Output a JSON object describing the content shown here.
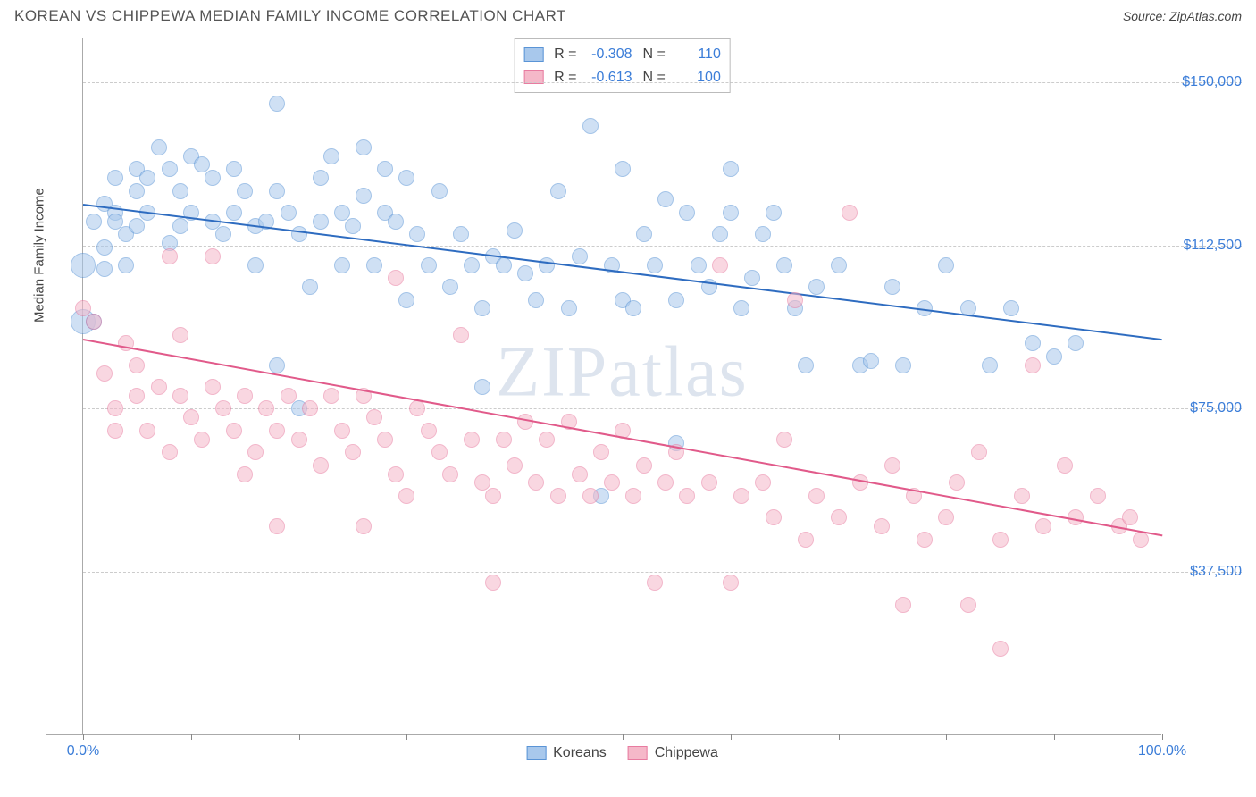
{
  "header": {
    "title": "KOREAN VS CHIPPEWA MEDIAN FAMILY INCOME CORRELATION CHART",
    "source": "Source: ZipAtlas.com"
  },
  "chart": {
    "type": "scatter",
    "ylabel": "Median Family Income",
    "xlim": [
      0,
      100
    ],
    "ylim": [
      0,
      160000
    ],
    "xticks": [
      0,
      10,
      20,
      30,
      40,
      50,
      60,
      70,
      80,
      90,
      100
    ],
    "xtick_labels": {
      "0": "0.0%",
      "100": "100.0%"
    },
    "yticks": [
      37500,
      75000,
      112500,
      150000
    ],
    "ytick_labels": [
      "$37,500",
      "$75,000",
      "$112,500",
      "$150,000"
    ],
    "grid_color": "#cccccc",
    "axis_color": "#aaaaaa",
    "background_color": "#ffffff",
    "ytick_label_color": "#3b7dd8",
    "watermark": "ZIPatlas",
    "series": [
      {
        "name": "Koreans",
        "fill": "#a8c8ec",
        "stroke": "#5a94d6",
        "opacity": 0.55,
        "marker_radius": 9,
        "trend": {
          "color": "#2e6cc0",
          "x1": 0,
          "y1": 122000,
          "x2": 100,
          "y2": 91000
        },
        "R": "-0.308",
        "N": "110",
        "points": [
          [
            0,
            108000,
            14
          ],
          [
            0,
            95000,
            14
          ],
          [
            1,
            118000,
            9
          ],
          [
            1,
            95000,
            9
          ],
          [
            2,
            122000,
            9
          ],
          [
            2,
            112000,
            9
          ],
          [
            2,
            107000,
            9
          ],
          [
            3,
            128000,
            9
          ],
          [
            3,
            120000,
            9
          ],
          [
            3,
            118000,
            9
          ],
          [
            4,
            108000,
            9
          ],
          [
            4,
            115000,
            9
          ],
          [
            5,
            125000,
            9
          ],
          [
            5,
            130000,
            9
          ],
          [
            5,
            117000,
            9
          ],
          [
            6,
            128000,
            9
          ],
          [
            6,
            120000,
            9
          ],
          [
            7,
            135000,
            9
          ],
          [
            8,
            130000,
            9
          ],
          [
            8,
            113000,
            9
          ],
          [
            9,
            125000,
            9
          ],
          [
            9,
            117000,
            9
          ],
          [
            10,
            133000,
            9
          ],
          [
            10,
            120000,
            9
          ],
          [
            11,
            131000,
            9
          ],
          [
            12,
            128000,
            9
          ],
          [
            12,
            118000,
            9
          ],
          [
            13,
            115000,
            9
          ],
          [
            14,
            130000,
            9
          ],
          [
            14,
            120000,
            9
          ],
          [
            15,
            125000,
            9
          ],
          [
            16,
            117000,
            9
          ],
          [
            16,
            108000,
            9
          ],
          [
            17,
            118000,
            9
          ],
          [
            18,
            145000,
            9
          ],
          [
            18,
            125000,
            9
          ],
          [
            18,
            85000,
            9
          ],
          [
            19,
            120000,
            9
          ],
          [
            20,
            115000,
            9
          ],
          [
            20,
            75000,
            9
          ],
          [
            21,
            103000,
            9
          ],
          [
            22,
            128000,
            9
          ],
          [
            22,
            118000,
            9
          ],
          [
            23,
            133000,
            9
          ],
          [
            24,
            120000,
            9
          ],
          [
            24,
            108000,
            9
          ],
          [
            25,
            117000,
            9
          ],
          [
            26,
            135000,
            9
          ],
          [
            26,
            124000,
            9
          ],
          [
            27,
            108000,
            9
          ],
          [
            28,
            130000,
            9
          ],
          [
            28,
            120000,
            9
          ],
          [
            29,
            118000,
            9
          ],
          [
            30,
            100000,
            9
          ],
          [
            30,
            128000,
            9
          ],
          [
            31,
            115000,
            9
          ],
          [
            32,
            108000,
            9
          ],
          [
            33,
            125000,
            9
          ],
          [
            34,
            103000,
            9
          ],
          [
            35,
            115000,
            9
          ],
          [
            36,
            108000,
            9
          ],
          [
            37,
            98000,
            9
          ],
          [
            37,
            80000,
            9
          ],
          [
            38,
            110000,
            9
          ],
          [
            39,
            108000,
            9
          ],
          [
            40,
            116000,
            9
          ],
          [
            41,
            106000,
            9
          ],
          [
            42,
            100000,
            9
          ],
          [
            43,
            108000,
            9
          ],
          [
            44,
            125000,
            9
          ],
          [
            45,
            98000,
            9
          ],
          [
            46,
            110000,
            9
          ],
          [
            47,
            140000,
            9
          ],
          [
            48,
            55000,
            9
          ],
          [
            49,
            108000,
            9
          ],
          [
            50,
            100000,
            9
          ],
          [
            50,
            130000,
            9
          ],
          [
            51,
            98000,
            9
          ],
          [
            52,
            115000,
            9
          ],
          [
            53,
            108000,
            9
          ],
          [
            54,
            123000,
            9
          ],
          [
            55,
            100000,
            9
          ],
          [
            55,
            67000,
            9
          ],
          [
            56,
            120000,
            9
          ],
          [
            57,
            108000,
            9
          ],
          [
            58,
            103000,
            9
          ],
          [
            59,
            115000,
            9
          ],
          [
            60,
            130000,
            9
          ],
          [
            60,
            120000,
            9
          ],
          [
            61,
            98000,
            9
          ],
          [
            62,
            105000,
            9
          ],
          [
            63,
            115000,
            9
          ],
          [
            64,
            120000,
            9
          ],
          [
            65,
            108000,
            9
          ],
          [
            66,
            98000,
            9
          ],
          [
            67,
            85000,
            9
          ],
          [
            68,
            103000,
            9
          ],
          [
            70,
            108000,
            9
          ],
          [
            72,
            85000,
            9
          ],
          [
            73,
            86000,
            9
          ],
          [
            75,
            103000,
            9
          ],
          [
            76,
            85000,
            9
          ],
          [
            78,
            98000,
            9
          ],
          [
            80,
            108000,
            9
          ],
          [
            82,
            98000,
            9
          ],
          [
            84,
            85000,
            9
          ],
          [
            86,
            98000,
            9
          ],
          [
            88,
            90000,
            9
          ],
          [
            90,
            87000,
            9
          ],
          [
            92,
            90000,
            9
          ]
        ]
      },
      {
        "name": "Chippewa",
        "fill": "#f5b8c9",
        "stroke": "#e87ba0",
        "opacity": 0.55,
        "marker_radius": 9,
        "trend": {
          "color": "#e15a8a",
          "x1": 0,
          "y1": 91000,
          "x2": 100,
          "y2": 46000
        },
        "R": "-0.613",
        "N": "100",
        "points": [
          [
            0,
            98000,
            9
          ],
          [
            1,
            95000,
            9
          ],
          [
            2,
            83000,
            9
          ],
          [
            3,
            75000,
            9
          ],
          [
            3,
            70000,
            9
          ],
          [
            4,
            90000,
            9
          ],
          [
            5,
            78000,
            9
          ],
          [
            5,
            85000,
            9
          ],
          [
            6,
            70000,
            9
          ],
          [
            7,
            80000,
            9
          ],
          [
            8,
            110000,
            9
          ],
          [
            8,
            65000,
            9
          ],
          [
            9,
            92000,
            9
          ],
          [
            9,
            78000,
            9
          ],
          [
            10,
            73000,
            9
          ],
          [
            11,
            68000,
            9
          ],
          [
            12,
            80000,
            9
          ],
          [
            12,
            110000,
            9
          ],
          [
            13,
            75000,
            9
          ],
          [
            14,
            70000,
            9
          ],
          [
            15,
            78000,
            9
          ],
          [
            15,
            60000,
            9
          ],
          [
            16,
            65000,
            9
          ],
          [
            17,
            75000,
            9
          ],
          [
            18,
            70000,
            9
          ],
          [
            18,
            48000,
            9
          ],
          [
            19,
            78000,
            9
          ],
          [
            20,
            68000,
            9
          ],
          [
            21,
            75000,
            9
          ],
          [
            22,
            62000,
            9
          ],
          [
            23,
            78000,
            9
          ],
          [
            24,
            70000,
            9
          ],
          [
            25,
            65000,
            9
          ],
          [
            26,
            78000,
            9
          ],
          [
            26,
            48000,
            9
          ],
          [
            27,
            73000,
            9
          ],
          [
            28,
            68000,
            9
          ],
          [
            29,
            105000,
            9
          ],
          [
            29,
            60000,
            9
          ],
          [
            30,
            55000,
            9
          ],
          [
            31,
            75000,
            9
          ],
          [
            32,
            70000,
            9
          ],
          [
            33,
            65000,
            9
          ],
          [
            34,
            60000,
            9
          ],
          [
            35,
            92000,
            9
          ],
          [
            36,
            68000,
            9
          ],
          [
            37,
            58000,
            9
          ],
          [
            38,
            55000,
            9
          ],
          [
            38,
            35000,
            9
          ],
          [
            39,
            68000,
            9
          ],
          [
            40,
            62000,
            9
          ],
          [
            41,
            72000,
            9
          ],
          [
            42,
            58000,
            9
          ],
          [
            43,
            68000,
            9
          ],
          [
            44,
            55000,
            9
          ],
          [
            45,
            72000,
            9
          ],
          [
            46,
            60000,
            9
          ],
          [
            47,
            55000,
            9
          ],
          [
            48,
            65000,
            9
          ],
          [
            49,
            58000,
            9
          ],
          [
            50,
            70000,
            9
          ],
          [
            51,
            55000,
            9
          ],
          [
            52,
            62000,
            9
          ],
          [
            53,
            35000,
            9
          ],
          [
            54,
            58000,
            9
          ],
          [
            55,
            65000,
            9
          ],
          [
            56,
            55000,
            9
          ],
          [
            58,
            58000,
            9
          ],
          [
            59,
            108000,
            9
          ],
          [
            60,
            35000,
            9
          ],
          [
            61,
            55000,
            9
          ],
          [
            63,
            58000,
            9
          ],
          [
            64,
            50000,
            9
          ],
          [
            65,
            68000,
            9
          ],
          [
            66,
            100000,
            9
          ],
          [
            67,
            45000,
            9
          ],
          [
            68,
            55000,
            9
          ],
          [
            70,
            50000,
            9
          ],
          [
            71,
            120000,
            9
          ],
          [
            72,
            58000,
            9
          ],
          [
            74,
            48000,
            9
          ],
          [
            75,
            62000,
            9
          ],
          [
            76,
            30000,
            9
          ],
          [
            77,
            55000,
            9
          ],
          [
            78,
            45000,
            9
          ],
          [
            80,
            50000,
            9
          ],
          [
            81,
            58000,
            9
          ],
          [
            82,
            30000,
            9
          ],
          [
            83,
            65000,
            9
          ],
          [
            85,
            45000,
            9
          ],
          [
            85,
            20000,
            9
          ],
          [
            87,
            55000,
            9
          ],
          [
            88,
            85000,
            9
          ],
          [
            89,
            48000,
            9
          ],
          [
            91,
            62000,
            9
          ],
          [
            92,
            50000,
            9
          ],
          [
            94,
            55000,
            9
          ],
          [
            96,
            48000,
            9
          ],
          [
            97,
            50000,
            9
          ],
          [
            98,
            45000,
            9
          ]
        ]
      }
    ],
    "legend_bottom": [
      "Koreans",
      "Chippewa"
    ]
  }
}
